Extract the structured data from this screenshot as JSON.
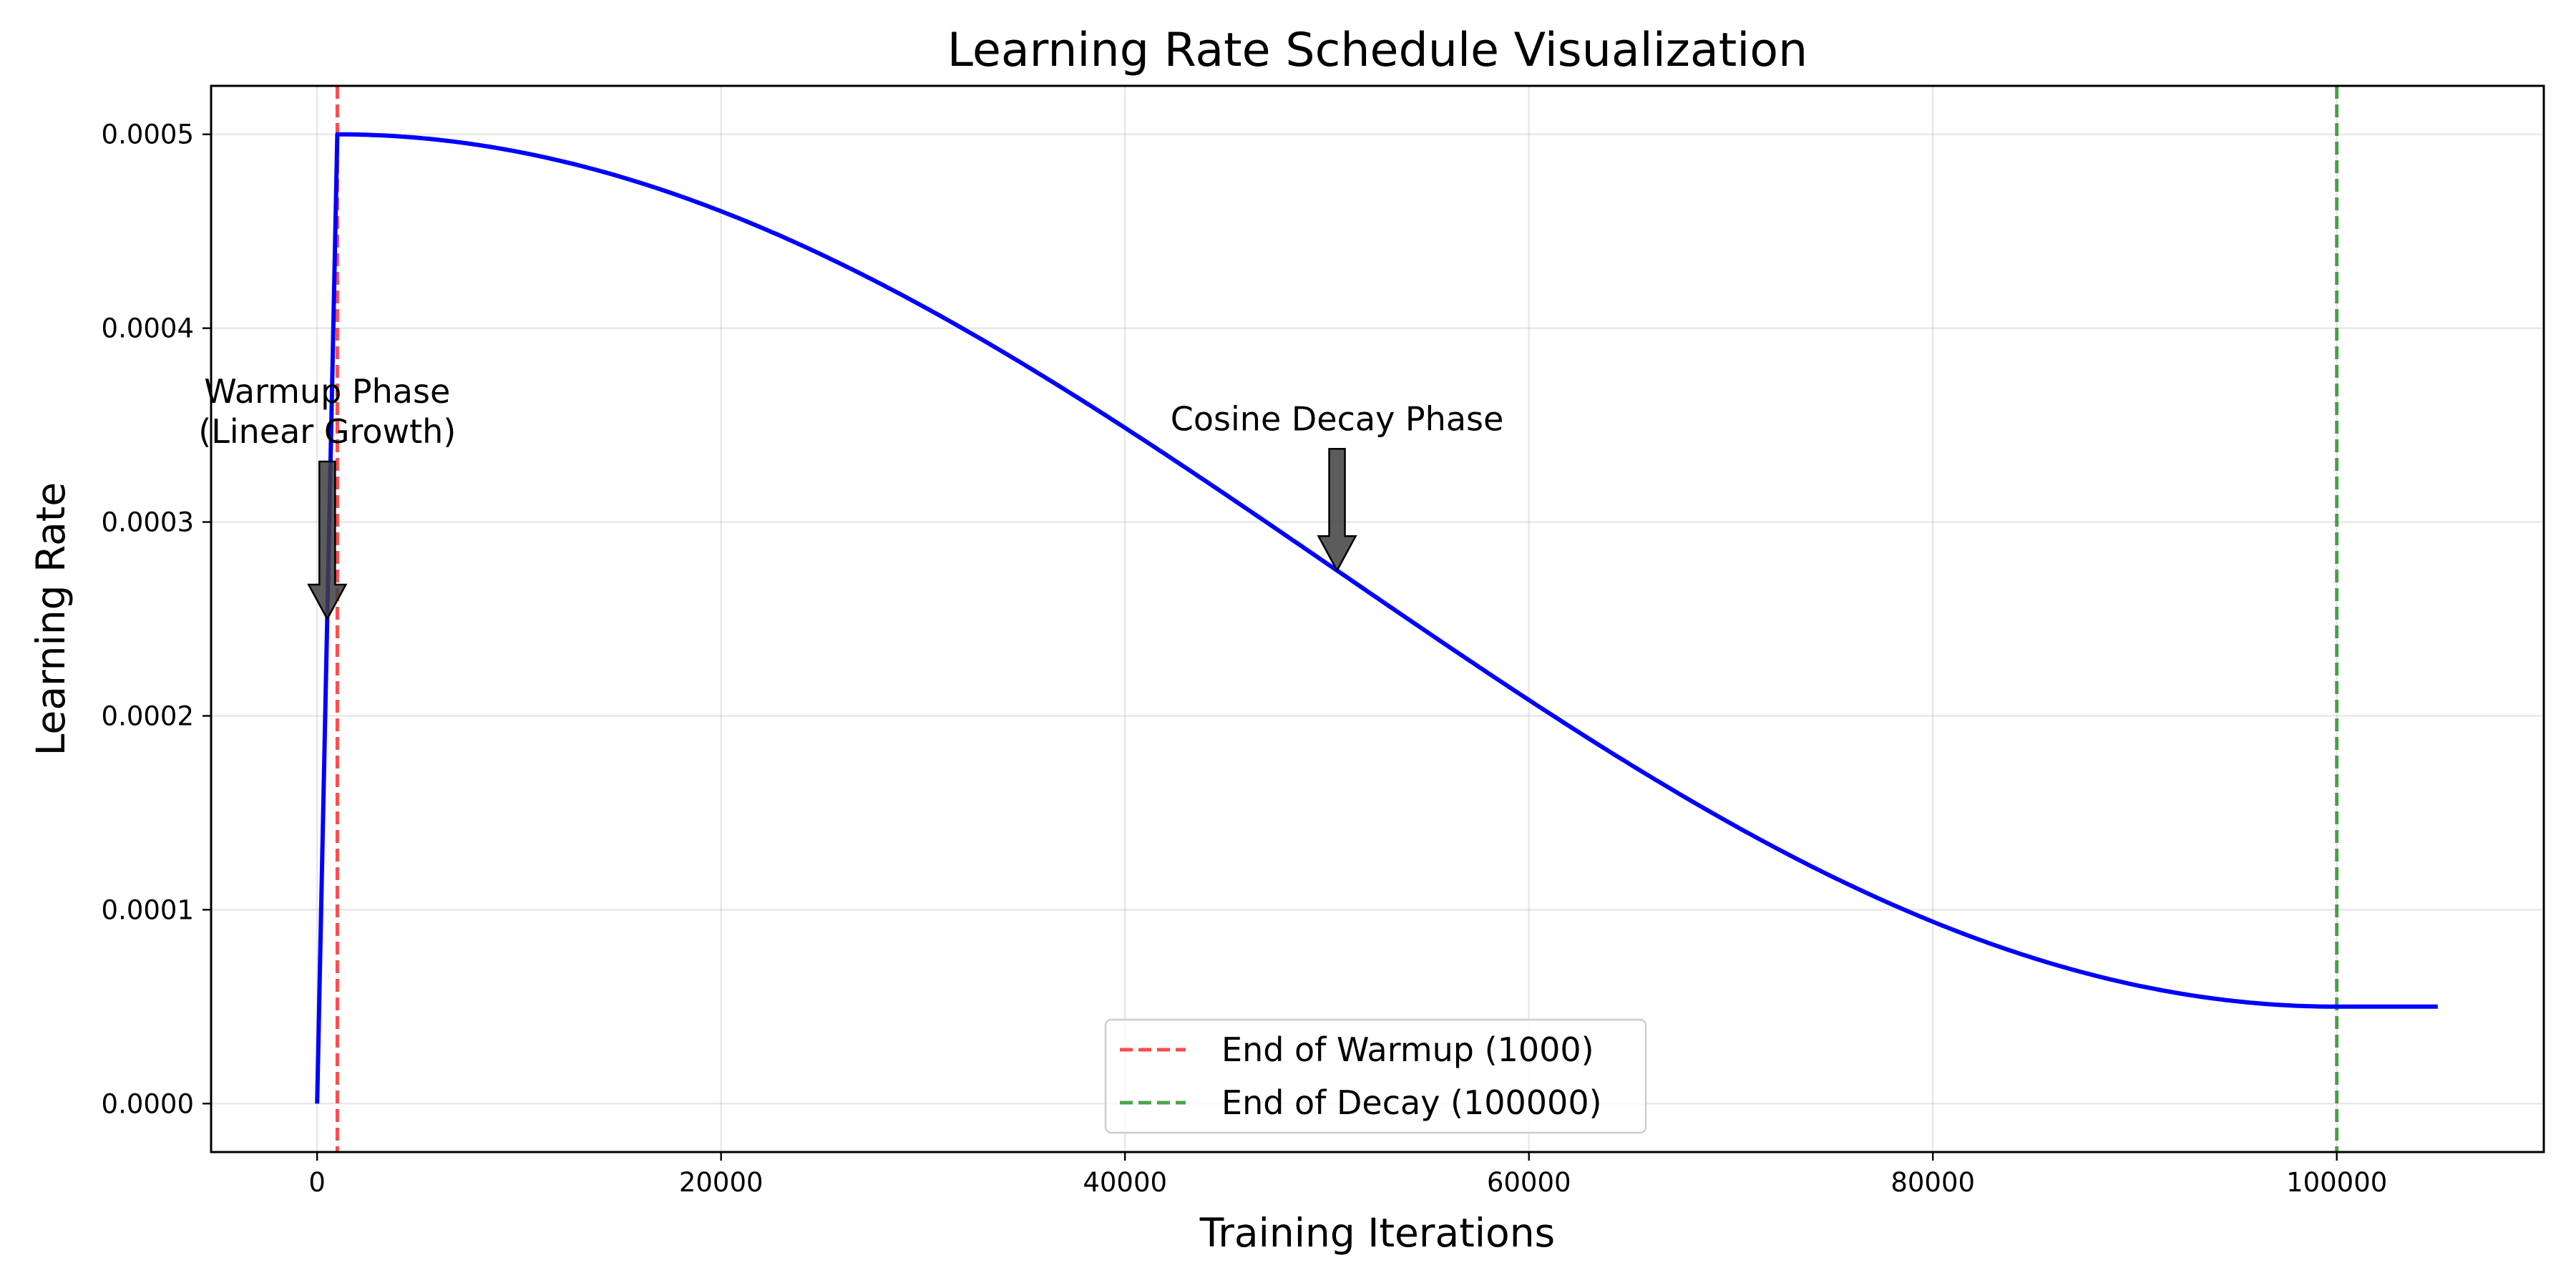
{
  "chart_data": {
    "type": "line",
    "title": "Learning Rate Schedule Visualization",
    "xlabel": "Training Iterations",
    "ylabel": "Learning Rate",
    "xlim": [
      -5250,
      110250
    ],
    "ylim": [
      -2.5e-05,
      0.000525
    ],
    "xticks": [
      0,
      20000,
      40000,
      60000,
      80000,
      100000
    ],
    "xtick_labels": [
      "0",
      "20000",
      "40000",
      "60000",
      "80000",
      "100000"
    ],
    "yticks": [
      0.0,
      0.0001,
      0.0002,
      0.0003,
      0.0004,
      0.0005
    ],
    "ytick_labels": [
      "0.0000",
      "0.0001",
      "0.0002",
      "0.0003",
      "0.0004",
      "0.0005"
    ],
    "grid": true,
    "schedule": {
      "warmup_steps": 1000,
      "decay_steps": 100000,
      "max_lr": 0.0005,
      "min_lr": 5e-05,
      "total_steps": 105000
    },
    "series": [
      {
        "color": "#0000ff",
        "x": [
          0,
          1000,
          5000,
          10000,
          15000,
          20000,
          25000,
          30000,
          35000,
          40000,
          45000,
          50000,
          55000,
          60000,
          65000,
          70000,
          75000,
          80000,
          85000,
          90000,
          95000,
          100000,
          105000
        ],
        "y": [
          0.0,
          0.0005,
          0.000496,
          0.000489,
          0.000476,
          0.000459,
          0.000438,
          0.000413,
          0.000385,
          0.000355,
          0.000324,
          0.000291,
          0.000258,
          0.000226,
          0.000194,
          0.000164,
          0.000136,
          0.000111,
          9e-05,
          7.3e-05,
          6e-05,
          5e-05,
          5e-05
        ]
      }
    ],
    "vlines": [
      {
        "x": 1000,
        "color": "#ff0000",
        "label": "End of Warmup (1000)"
      },
      {
        "x": 100000,
        "color": "#008000",
        "label": "End of Decay (100000)"
      }
    ],
    "annotations": [
      {
        "lines": [
          "Warmup Phase",
          "(Linear Growth)"
        ],
        "arrow_x": 500,
        "arrow_y": 0.00025
      },
      {
        "lines": [
          "Cosine Decay Phase"
        ],
        "arrow_x": 50500,
        "arrow_y": 0.000275
      }
    ],
    "legend": {
      "placement": "lower-center",
      "entries": [
        "End of Warmup (1000)",
        "End of Decay (100000)"
      ]
    }
  }
}
